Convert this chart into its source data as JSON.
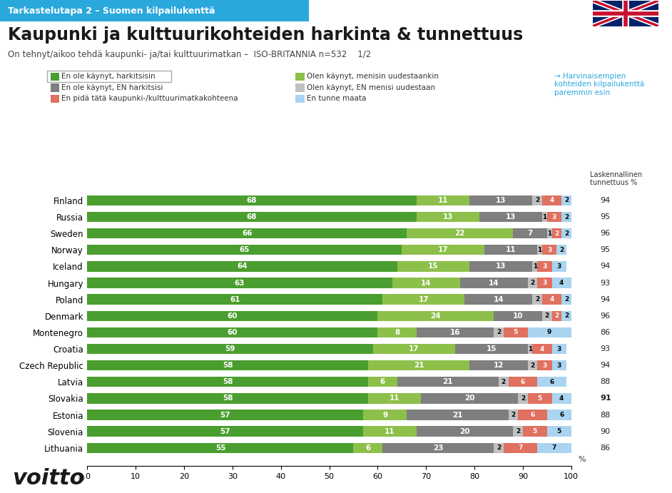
{
  "title": "Kaupunki ja kulttuurikohteiden harkinta & tunnettuus",
  "subtitle": "On tehnyt/aikoo tehdä kaupunki- ja/tai kulttuurimatkan –  ISO-BRITANNIA n=532    1/2",
  "header_label": "Tarkastelutapa 2 – Suomen kilpailukenttä",
  "right_label_line1": "Laskennallinen",
  "right_label_line2": "tunnettuus %",
  "countries": [
    "Finland",
    "Russia",
    "Sweden",
    "Norway",
    "Iceland",
    "Hungary",
    "Poland",
    "Denmark",
    "Montenegro",
    "Croatia",
    "Czech Republic",
    "Latvia",
    "Slovakia",
    "Estonia",
    "Slovenia",
    "Lithuania"
  ],
  "data": {
    "s1": [
      68,
      68,
      66,
      65,
      64,
      63,
      61,
      60,
      60,
      59,
      58,
      58,
      58,
      57,
      57,
      55
    ],
    "s2": [
      11,
      13,
      22,
      17,
      15,
      14,
      17,
      24,
      8,
      17,
      21,
      6,
      11,
      9,
      11,
      6
    ],
    "s3": [
      13,
      13,
      7,
      11,
      13,
      14,
      14,
      10,
      16,
      15,
      12,
      21,
      20,
      21,
      20,
      23
    ],
    "s4": [
      2,
      1,
      1,
      1,
      1,
      2,
      2,
      2,
      2,
      1,
      2,
      2,
      2,
      2,
      2,
      2
    ],
    "s5": [
      4,
      3,
      2,
      3,
      3,
      3,
      4,
      2,
      5,
      4,
      3,
      6,
      5,
      6,
      5,
      7
    ],
    "s6": [
      2,
      2,
      2,
      2,
      3,
      4,
      2,
      2,
      9,
      3,
      3,
      6,
      4,
      6,
      5,
      7
    ]
  },
  "tunnettuus": [
    94,
    95,
    96,
    95,
    94,
    93,
    94,
    96,
    86,
    93,
    94,
    88,
    91,
    88,
    90,
    86
  ],
  "tunnettuus_bold": [
    false,
    false,
    false,
    false,
    false,
    false,
    false,
    false,
    false,
    false,
    false,
    false,
    true,
    false,
    false,
    false
  ],
  "colors": {
    "s1": "#4a9e2f",
    "s2": "#8dc04a",
    "s3": "#7f7f7f",
    "s4": "#c0c0c0",
    "s5": "#e07060",
    "s6": "#aad4f0"
  },
  "legend_labels": [
    "En ole käynyt, harkitsisin",
    "Olen käynyt, menisin uudestaankin",
    "En ole käynyt, EN harkitsisi",
    "Olen käynyt, EN menisi uudestaan",
    "En pidä tätä kaupunki-/kulttuurimatkakohteena",
    "En tunne maata"
  ],
  "arrow_text": "→ Harvinaisempien\nkohteiden kilpailukenttä\nparemmin esin",
  "xlim": [
    0,
    100
  ],
  "xticks": [
    0,
    10,
    20,
    30,
    40,
    50,
    60,
    70,
    80,
    90,
    100
  ],
  "background_color": "#ffffff",
  "header_bg": "#29a8dc",
  "header_text_color": "#ffffff"
}
